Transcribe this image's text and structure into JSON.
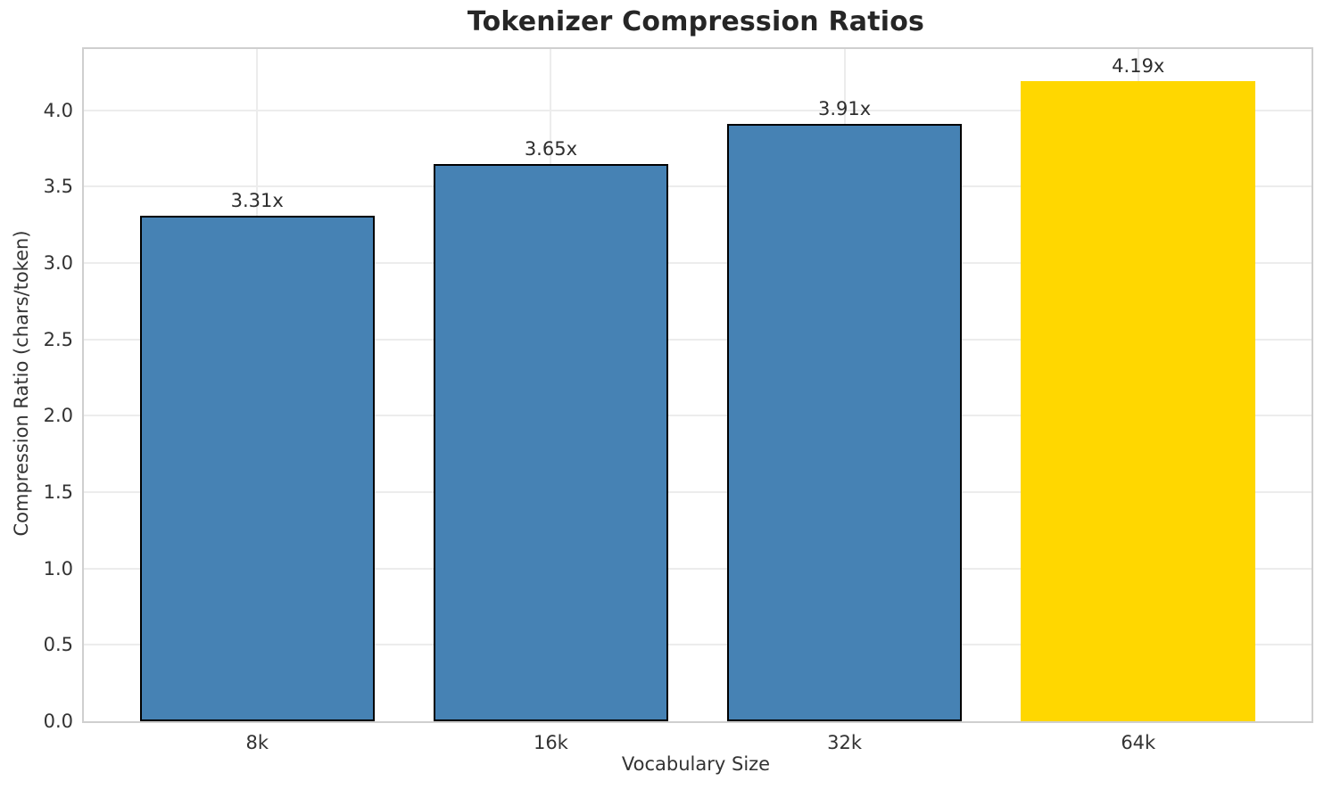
{
  "chart_data": {
    "type": "bar",
    "title": "Tokenizer Compression Ratios",
    "xlabel": "Vocabulary Size",
    "ylabel": "Compression Ratio (chars/token)",
    "categories": [
      "8k",
      "16k",
      "32k",
      "64k"
    ],
    "values": [
      3.31,
      3.65,
      3.91,
      4.19
    ],
    "value_labels": [
      "3.31x",
      "3.65x",
      "3.91x",
      "4.19x"
    ],
    "bar_colors": [
      "#4682B4",
      "#4682B4",
      "#4682B4",
      "#FFD700"
    ],
    "bar_edge_colors": [
      "#000000",
      "#000000",
      "#000000",
      "none"
    ],
    "ylim": [
      0,
      4.4
    ],
    "yticks": [
      0,
      0.5,
      1,
      1.5,
      2,
      2.5,
      3,
      3.5,
      4
    ],
    "ytick_labels": [
      "0.0",
      "0.5",
      "1.0",
      "1.5",
      "2.0",
      "2.5",
      "3.0",
      "3.5",
      "4.0"
    ],
    "grid": true,
    "legend": "none",
    "bar_width_units": 0.8,
    "x_margin_units": 0.59
  },
  "colors": {
    "background": "#ffffff",
    "grid": "#ececec",
    "spine": "#cfcfcf",
    "tick_text": "#333333",
    "title_text": "#262626",
    "bar_blue": "#4682B4",
    "bar_gold": "#FFD700",
    "bar_edge": "#000000"
  }
}
